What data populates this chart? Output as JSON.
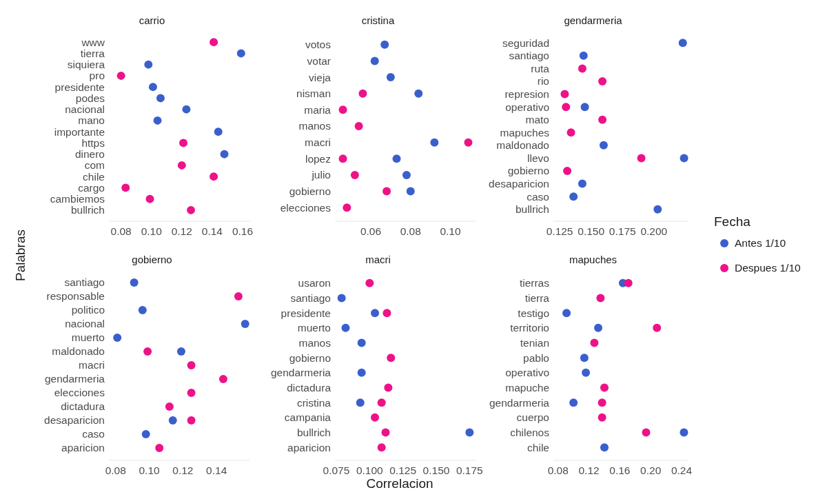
{
  "chart_data": [
    {
      "type": "scatter",
      "orientation": "horizontal",
      "title": "carrio",
      "ylabel": "Palabras",
      "marker": "circle",
      "categories": [
        "www",
        "tierra",
        "siquiera",
        "pro",
        "presidente",
        "podes",
        "nacional",
        "mano",
        "importante",
        "https",
        "dinero",
        "com",
        "chile",
        "cargo",
        "cambiemos",
        "bullrich"
      ],
      "xlim": [
        0.072,
        0.165
      ],
      "xticks": [
        0.08,
        {
          "value": 0.1,
          "label": "0.10"
        },
        0.12,
        0.14,
        0.16
      ],
      "series": [
        {
          "color": "#3a5fcd",
          "values": [
            null,
            0.159,
            0.098,
            null,
            0.101,
            0.106,
            0.123,
            0.104,
            0.144,
            null,
            0.148,
            null,
            null,
            null,
            null,
            null
          ]
        },
        {
          "color": "#ee1289",
          "values": [
            0.141,
            null,
            null,
            0.08,
            null,
            null,
            null,
            null,
            null,
            0.121,
            null,
            0.12,
            0.141,
            0.083,
            0.099,
            0.126
          ]
        }
      ]
    },
    {
      "type": "scatter",
      "orientation": "horizontal",
      "title": "cristina",
      "marker": "circle",
      "categories": [
        "votos",
        "votar",
        "vieja",
        "nisman",
        "maria",
        "manos",
        "macri",
        "lopez",
        "julio",
        "gobierno",
        "elecciones"
      ],
      "xlim": [
        0.042,
        0.113
      ],
      "xticks": [
        0.06,
        0.08,
        {
          "value": 0.1,
          "label": "0.10"
        }
      ],
      "series": [
        {
          "color": "#3a5fcd",
          "values": [
            0.067,
            0.062,
            0.07,
            0.084,
            null,
            null,
            0.092,
            0.073,
            0.078,
            0.08,
            null
          ]
        },
        {
          "color": "#ee1289",
          "values": [
            null,
            null,
            null,
            0.056,
            0.046,
            0.054,
            0.109,
            0.046,
            0.052,
            0.068,
            0.048
          ]
        }
      ]
    },
    {
      "type": "scatter",
      "orientation": "horizontal",
      "title": "gendarmeria",
      "marker": "circle",
      "legend": "right",
      "legend_title": "Fecha",
      "categories": [
        "seguridad",
        "santiago",
        "ruta",
        "rio",
        "represion",
        "operativo",
        "mato",
        "mapuches",
        "maldonado",
        "llevo",
        "gobierno",
        "desaparicion",
        "caso",
        "bullrich"
      ],
      "xlim": [
        0.12,
        0.227
      ],
      "xticks": [
        0.125,
        {
          "value": 0.15,
          "label": "0.150"
        },
        0.175,
        {
          "value": 0.2,
          "label": "0.200"
        }
      ],
      "series": [
        {
          "name": "Antes 1/10",
          "color": "#3a5fcd",
          "values": [
            0.223,
            0.144,
            null,
            null,
            null,
            0.145,
            null,
            null,
            0.16,
            0.224,
            null,
            0.143,
            0.136,
            0.203
          ]
        },
        {
          "name": "Despues 1/10",
          "color": "#ee1289",
          "values": [
            null,
            null,
            0.143,
            0.159,
            0.129,
            0.13,
            0.159,
            0.134,
            null,
            0.19,
            0.131,
            null,
            null,
            null
          ]
        }
      ]
    },
    {
      "type": "scatter",
      "orientation": "horizontal",
      "title": "gobierno",
      "marker": "circle",
      "categories": [
        "santiago",
        "responsable",
        "politico",
        "nacional",
        "muerto",
        "maldonado",
        "macri",
        "gendarmeria",
        "elecciones",
        "dictadura",
        "desaparicion",
        "caso",
        "aparicion"
      ],
      "xlim": [
        0.076,
        0.16
      ],
      "xticks": [
        0.08,
        {
          "value": 0.1,
          "label": "0.10"
        },
        0.12,
        0.14
      ],
      "series": [
        {
          "color": "#3a5fcd",
          "values": [
            0.091,
            null,
            0.096,
            0.157,
            0.081,
            0.119,
            null,
            null,
            null,
            null,
            0.114,
            0.098,
            null
          ]
        },
        {
          "color": "#ee1289",
          "values": [
            null,
            0.153,
            null,
            null,
            null,
            0.099,
            0.125,
            0.144,
            0.125,
            0.112,
            0.125,
            null,
            0.106
          ]
        }
      ]
    },
    {
      "type": "scatter",
      "orientation": "horizontal",
      "title": "macri",
      "xlabel": "Correlacion",
      "marker": "circle",
      "categories": [
        "usaron",
        "santiago",
        "presidente",
        "muerto",
        "manos",
        "gobierno",
        "gendarmeria",
        "dictadura",
        "cristina",
        "campania",
        "bullrich",
        "aparicion"
      ],
      "xlim": [
        0.074,
        0.18
      ],
      "xticks": [
        0.075,
        {
          "value": 0.1,
          "label": "0.100"
        },
        0.125,
        {
          "value": 0.15,
          "label": "0.150"
        },
        0.175
      ],
      "series": [
        {
          "color": "#3a5fcd",
          "values": [
            null,
            0.079,
            0.104,
            0.082,
            0.094,
            null,
            0.094,
            null,
            0.093,
            null,
            0.175,
            null
          ]
        },
        {
          "color": "#ee1289",
          "values": [
            0.1,
            null,
            0.113,
            null,
            null,
            0.116,
            null,
            0.114,
            0.109,
            0.104,
            0.112,
            0.109
          ]
        }
      ]
    },
    {
      "type": "scatter",
      "orientation": "horizontal",
      "title": "mapuches",
      "marker": "circle",
      "categories": [
        "tierras",
        "tierra",
        "testigo",
        "territorio",
        "tenian",
        "pablo",
        "operativo",
        "mapuche",
        "gendarmeria",
        "cuerpo",
        "chilenos",
        "chile"
      ],
      "xlim": [
        0.074,
        0.248
      ],
      "xticks": [
        0.08,
        0.12,
        0.16,
        {
          "value": 0.2,
          "label": "0.20"
        },
        0.24
      ],
      "series": [
        {
          "color": "#3a5fcd",
          "values": [
            0.164,
            null,
            0.091,
            0.132,
            null,
            0.114,
            0.116,
            null,
            0.1,
            null,
            0.243,
            0.14
          ]
        },
        {
          "color": "#ee1289",
          "values": [
            0.171,
            0.135,
            null,
            0.208,
            0.127,
            null,
            null,
            0.14,
            0.137,
            0.137,
            0.194,
            null
          ]
        }
      ]
    }
  ]
}
